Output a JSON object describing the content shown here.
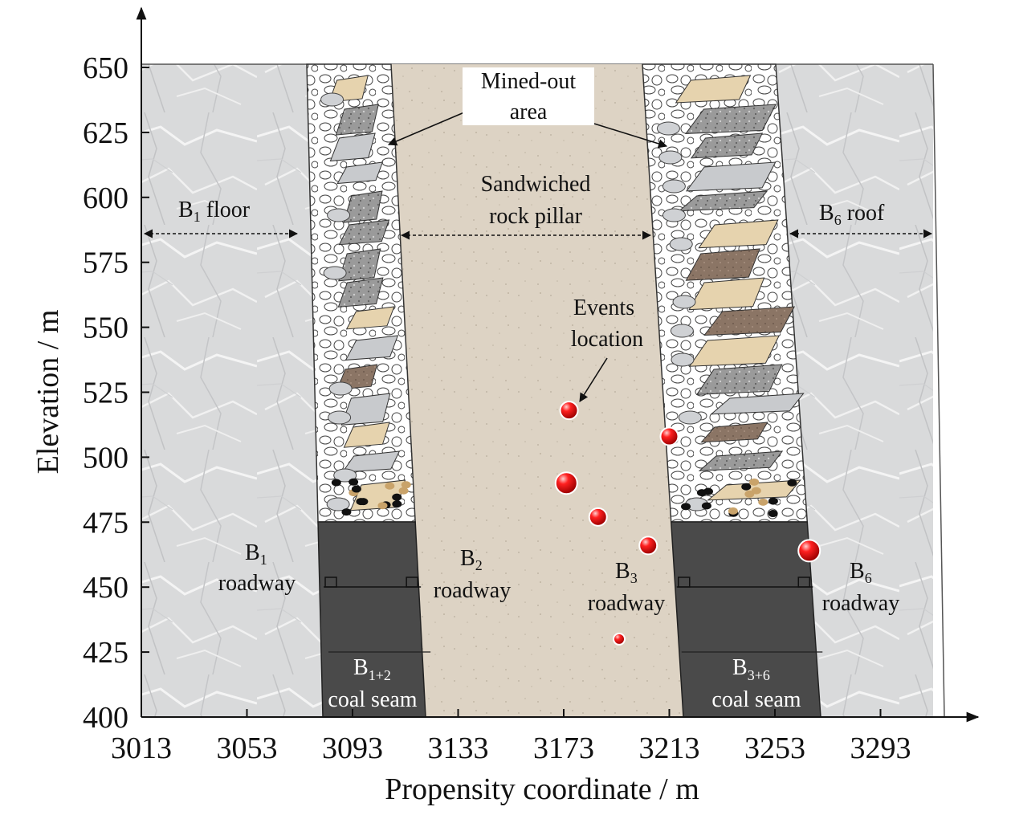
{
  "axes": {
    "x_title": "Propensity coordinate / m",
    "y_title": "Elevation / m",
    "x_ticks": [
      3013,
      3053,
      3093,
      3133,
      3173,
      3213,
      3253,
      3293
    ],
    "y_ticks": [
      400,
      425,
      450,
      475,
      500,
      525,
      550,
      575,
      600,
      625,
      650
    ]
  },
  "labels": {
    "b1_floor": "B",
    "b1_floor_sub": "1",
    "b1_floor_tail": " floor",
    "b6_roof": "B",
    "b6_roof_sub": "6",
    "b6_roof_tail": " roof",
    "sandwiched_1": "Sandwiched",
    "sandwiched_2": "rock pillar",
    "mined_out_1": "Mined-out",
    "mined_out_2": "area",
    "events_1": "Events",
    "events_2": "location",
    "roadway": "roadway",
    "coal_seam": "coal seam",
    "b": "B",
    "b1_sub": "1",
    "b2_sub": "2",
    "b3_sub": "3",
    "b6_sub": "6",
    "b12_sub": "1+2",
    "b36_sub": "3+6"
  },
  "colors": {
    "country_rock": "#d9dadb",
    "pillar": "#ddd3c4",
    "coal": "#4a4a4a",
    "event": "#e00000"
  },
  "events": [
    {
      "x": 3175,
      "y": 518,
      "size": "medium"
    },
    {
      "x": 3174,
      "y": 490,
      "size": "large"
    },
    {
      "x": 3186,
      "y": 477,
      "size": "medium"
    },
    {
      "x": 3205,
      "y": 466,
      "size": "medium"
    },
    {
      "x": 3194,
      "y": 430,
      "size": "small"
    },
    {
      "x": 3213,
      "y": 508,
      "size": "medium"
    },
    {
      "x": 3266,
      "y": 464,
      "size": "large"
    }
  ]
}
